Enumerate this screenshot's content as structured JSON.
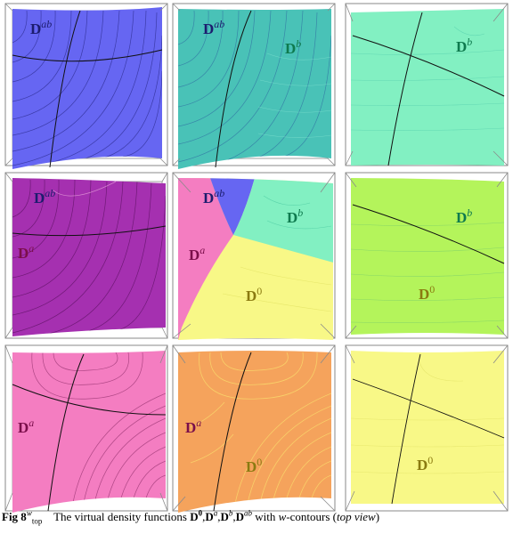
{
  "panel_labels": {
    "D_ab": {
      "base": "D",
      "sup": "ab"
    },
    "D_a": {
      "base": "D",
      "sup": "a"
    },
    "D_b": {
      "base": "D",
      "sup": "b"
    },
    "D_0": {
      "base": "D",
      "sup": "0"
    }
  },
  "colors": {
    "blue": "#6666f2",
    "teal": "#49c2b7",
    "mint": "#82f0c2",
    "magenta": "#a530b0",
    "pink": "#f47dc1",
    "lime": "#b4f45b",
    "yellow": "#f8f887",
    "orange": "#f5a35c",
    "frame": "#8a8a8a"
  },
  "caption": {
    "fig_prefix": "Fig 8",
    "fig_sup": "w",
    "fig_sub": "top",
    "text_1": "The virtual density functions",
    "d0_base": "D",
    "d0_sup": "0",
    "da_base": "D",
    "da_sup": "a",
    "db_base": "D",
    "db_sup": "b",
    "dab_base": "D",
    "dab_sup": "ab",
    "text_2": "with",
    "w_letter": "w",
    "text_3": "-contours (",
    "view_text": "top view",
    "text_4": ")"
  }
}
